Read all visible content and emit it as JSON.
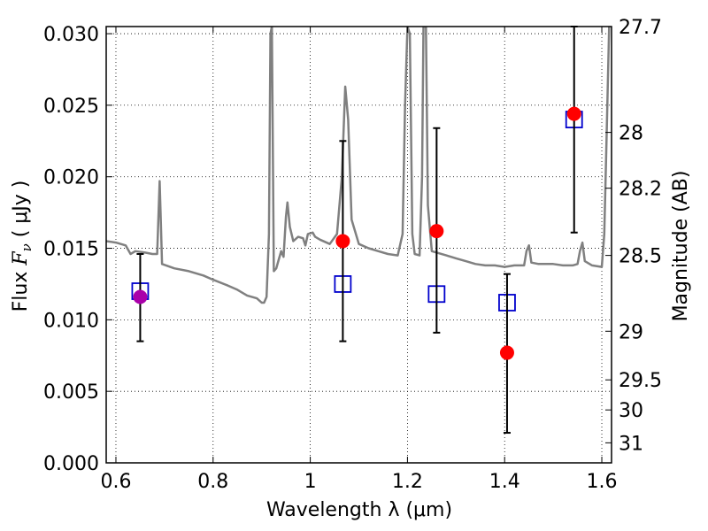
{
  "chart_data": {
    "type": "scatter",
    "xlabel": "Wavelength  λ (μm)",
    "ylabel": "Flux  F_ν  ( μJy )",
    "ylabel_parts": {
      "prefix": "Flux  ",
      "sym": "F",
      "sub": "ν",
      "suffix": "  ( μJy )"
    },
    "y2label": "Magnitude (AB)",
    "xlim": [
      0.58,
      1.62
    ],
    "ylim": [
      0.0,
      0.0305
    ],
    "grid": true,
    "x_ticks": [
      {
        "value": 0.6,
        "label": "0.6"
      },
      {
        "value": 0.8,
        "label": "0.8"
      },
      {
        "value": 1.0,
        "label": "1"
      },
      {
        "value": 1.2,
        "label": "1.2"
      },
      {
        "value": 1.4,
        "label": "1.4"
      },
      {
        "value": 1.6,
        "label": "1.6"
      }
    ],
    "y_ticks": [
      {
        "value": 0.0,
        "label": "0.000"
      },
      {
        "value": 0.005,
        "label": "0.005"
      },
      {
        "value": 0.01,
        "label": "0.010"
      },
      {
        "value": 0.015,
        "label": "0.015"
      },
      {
        "value": 0.02,
        "label": "0.020"
      },
      {
        "value": 0.025,
        "label": "0.025"
      },
      {
        "value": 0.03,
        "label": "0.030"
      }
    ],
    "y2_ticks": [
      {
        "flux": 0.0305,
        "label": "27.7"
      },
      {
        "flux": 0.0231,
        "label": "28"
      },
      {
        "flux": 0.0192,
        "label": "28.2"
      },
      {
        "flux": 0.0145,
        "label": "28.5"
      },
      {
        "flux": 0.0092,
        "label": "29"
      },
      {
        "flux": 0.0058,
        "label": "29.5"
      },
      {
        "flux": 0.0037,
        "label": "30"
      },
      {
        "flux": 0.0014,
        "label": "31"
      }
    ],
    "colors": {
      "template": "#808080",
      "open_squares": "#0000cc",
      "observed": "#ff0000",
      "observed_first": "#aa00aa",
      "errorbar": "#000000"
    },
    "series": [
      {
        "kind": "template-line",
        "points": [
          [
            0.58,
            0.0155
          ],
          [
            0.6,
            0.0154
          ],
          [
            0.62,
            0.0152
          ],
          [
            0.63,
            0.0146
          ],
          [
            0.64,
            0.0148
          ],
          [
            0.66,
            0.0147
          ],
          [
            0.675,
            0.0146
          ],
          [
            0.685,
            0.0146
          ],
          [
            0.69,
            0.0197
          ],
          [
            0.695,
            0.0139
          ],
          [
            0.72,
            0.0136
          ],
          [
            0.75,
            0.0134
          ],
          [
            0.78,
            0.0131
          ],
          [
            0.8,
            0.0128
          ],
          [
            0.83,
            0.0124
          ],
          [
            0.85,
            0.0121
          ],
          [
            0.87,
            0.0117
          ],
          [
            0.89,
            0.0115
          ],
          [
            0.9,
            0.0112
          ],
          [
            0.905,
            0.0112
          ],
          [
            0.91,
            0.0116
          ],
          [
            0.915,
            0.016
          ],
          [
            0.918,
            0.03
          ],
          [
            0.921,
            0.0305
          ],
          [
            0.925,
            0.0134
          ],
          [
            0.93,
            0.0136
          ],
          [
            0.935,
            0.0142
          ],
          [
            0.94,
            0.0148
          ],
          [
            0.945,
            0.0144
          ],
          [
            0.95,
            0.0172
          ],
          [
            0.953,
            0.0182
          ],
          [
            0.958,
            0.0165
          ],
          [
            0.965,
            0.0155
          ],
          [
            0.975,
            0.0158
          ],
          [
            0.985,
            0.0157
          ],
          [
            0.99,
            0.0152
          ],
          [
            0.995,
            0.016
          ],
          [
            1.005,
            0.0161
          ],
          [
            1.01,
            0.0158
          ],
          [
            1.02,
            0.0156
          ],
          [
            1.04,
            0.0153
          ],
          [
            1.055,
            0.016
          ],
          [
            1.065,
            0.02
          ],
          [
            1.072,
            0.0263
          ],
          [
            1.078,
            0.024
          ],
          [
            1.085,
            0.017
          ],
          [
            1.1,
            0.0153
          ],
          [
            1.12,
            0.015
          ],
          [
            1.14,
            0.0148
          ],
          [
            1.16,
            0.0146
          ],
          [
            1.18,
            0.0145
          ],
          [
            1.19,
            0.016
          ],
          [
            1.195,
            0.025
          ],
          [
            1.2,
            0.0305
          ],
          [
            1.205,
            0.03
          ],
          [
            1.21,
            0.016
          ],
          [
            1.215,
            0.0146
          ],
          [
            1.225,
            0.0145
          ],
          [
            1.23,
            0.02
          ],
          [
            1.233,
            0.0305
          ],
          [
            1.238,
            0.0305
          ],
          [
            1.242,
            0.018
          ],
          [
            1.25,
            0.0148
          ],
          [
            1.28,
            0.0145
          ],
          [
            1.3,
            0.0143
          ],
          [
            1.32,
            0.0141
          ],
          [
            1.34,
            0.0139
          ],
          [
            1.36,
            0.0138
          ],
          [
            1.38,
            0.0138
          ],
          [
            1.4,
            0.0137
          ],
          [
            1.42,
            0.0138
          ],
          [
            1.44,
            0.0138
          ],
          [
            1.445,
            0.0148
          ],
          [
            1.45,
            0.0152
          ],
          [
            1.455,
            0.014
          ],
          [
            1.47,
            0.0139
          ],
          [
            1.5,
            0.0139
          ],
          [
            1.52,
            0.0138
          ],
          [
            1.54,
            0.0138
          ],
          [
            1.55,
            0.0139
          ],
          [
            1.555,
            0.0148
          ],
          [
            1.56,
            0.0154
          ],
          [
            1.565,
            0.0141
          ],
          [
            1.58,
            0.0138
          ],
          [
            1.6,
            0.0137
          ],
          [
            1.605,
            0.016
          ],
          [
            1.61,
            0.023
          ],
          [
            1.615,
            0.0305
          ]
        ]
      },
      {
        "kind": "open-squares",
        "points": [
          [
            0.65,
            0.012
          ],
          [
            1.067,
            0.0125
          ],
          [
            1.26,
            0.0118
          ],
          [
            1.405,
            0.0112
          ],
          [
            1.543,
            0.024
          ]
        ]
      },
      {
        "kind": "observed-with-errors",
        "points": [
          {
            "x": 0.65,
            "y": 0.0116,
            "lo": 0.0085,
            "hi": 0.0146
          },
          {
            "x": 1.067,
            "y": 0.0155,
            "lo": 0.0085,
            "hi": 0.0225
          },
          {
            "x": 1.26,
            "y": 0.0162,
            "lo": 0.0091,
            "hi": 0.0234
          },
          {
            "x": 1.405,
            "y": 0.0077,
            "lo": 0.0021,
            "hi": 0.0132
          },
          {
            "x": 1.543,
            "y": 0.0244,
            "lo": 0.0161,
            "hi": 0.0305
          }
        ]
      }
    ]
  }
}
